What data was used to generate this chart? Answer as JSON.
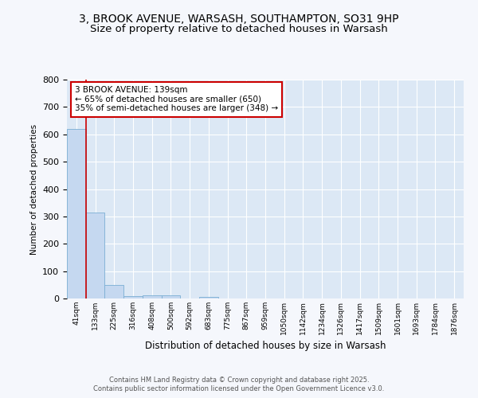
{
  "title_line1": "3, BROOK AVENUE, WARSASH, SOUTHAMPTON, SO31 9HP",
  "title_line2": "Size of property relative to detached houses in Warsash",
  "xlabel": "Distribution of detached houses by size in Warsash",
  "ylabel": "Number of detached properties",
  "categories": [
    "41sqm",
    "133sqm",
    "225sqm",
    "316sqm",
    "408sqm",
    "500sqm",
    "592sqm",
    "683sqm",
    "775sqm",
    "867sqm",
    "959sqm",
    "1050sqm",
    "1142sqm",
    "1234sqm",
    "1326sqm",
    "1417sqm",
    "1509sqm",
    "1601sqm",
    "1693sqm",
    "1784sqm",
    "1876sqm"
  ],
  "values": [
    620,
    315,
    50,
    10,
    13,
    13,
    0,
    5,
    0,
    0,
    0,
    0,
    0,
    0,
    0,
    0,
    0,
    0,
    0,
    0,
    0
  ],
  "bar_color": "#c5d8f0",
  "bar_edge_color": "#7baed4",
  "ylim": [
    0,
    800
  ],
  "yticks": [
    0,
    100,
    200,
    300,
    400,
    500,
    600,
    700,
    800
  ],
  "annotation_text": "3 BROOK AVENUE: 139sqm\n← 65% of detached houses are smaller (650)\n35% of semi-detached houses are larger (348) →",
  "red_line_x": 0.5,
  "red_line_color": "#cc0000",
  "background_color": "#f5f7fc",
  "plot_bg_color": "#dce8f5",
  "grid_color": "#ffffff",
  "title_fontsize": 10,
  "subtitle_fontsize": 9.5,
  "footer_line1": "Contains HM Land Registry data © Crown copyright and database right 2025.",
  "footer_line2": "Contains public sector information licensed under the Open Government Licence v3.0."
}
